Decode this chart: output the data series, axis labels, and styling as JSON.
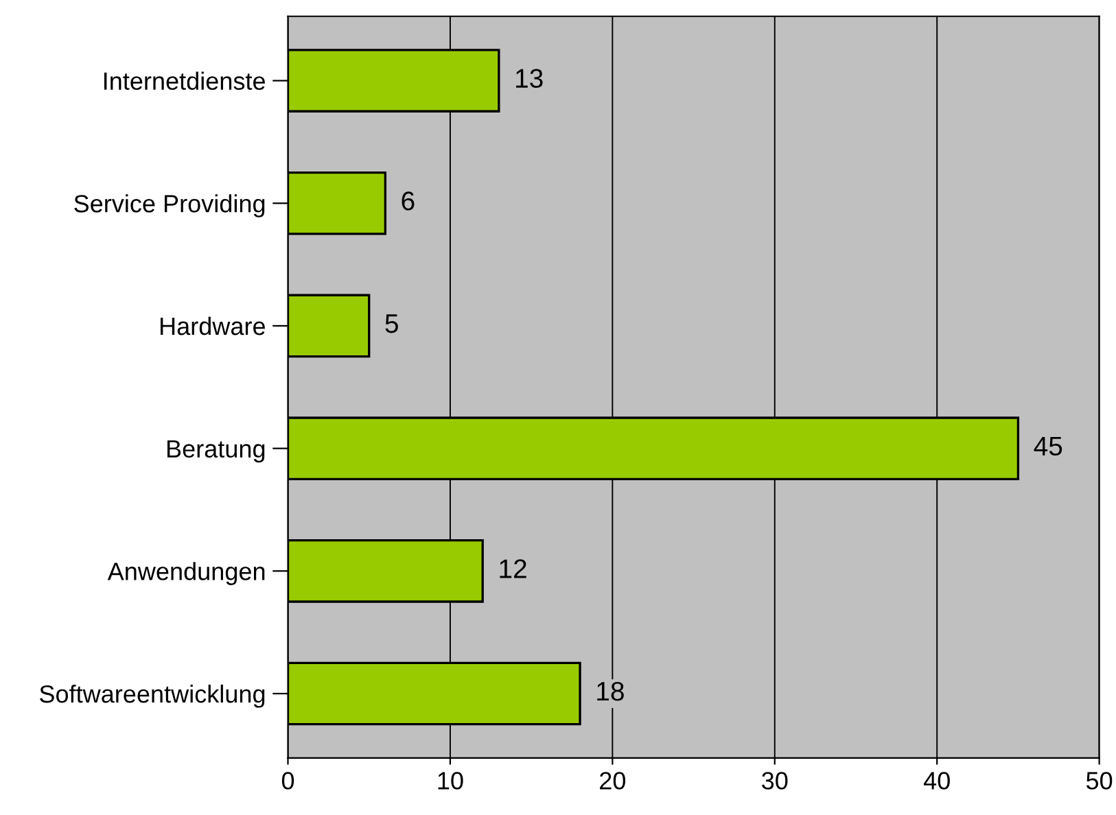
{
  "chart_data": {
    "type": "bar",
    "orientation": "horizontal",
    "categories": [
      "Internetdienste",
      "Service Providing",
      "Hardware",
      "Beratung",
      "Anwendungen",
      "Softwareentwicklung"
    ],
    "values": [
      13,
      6,
      5,
      45,
      12,
      18
    ],
    "color": "#99cc00",
    "xlim": [
      0,
      50
    ],
    "xticks": [
      0,
      10,
      20,
      30,
      40,
      50
    ],
    "grid": "x",
    "data_labels": true
  }
}
